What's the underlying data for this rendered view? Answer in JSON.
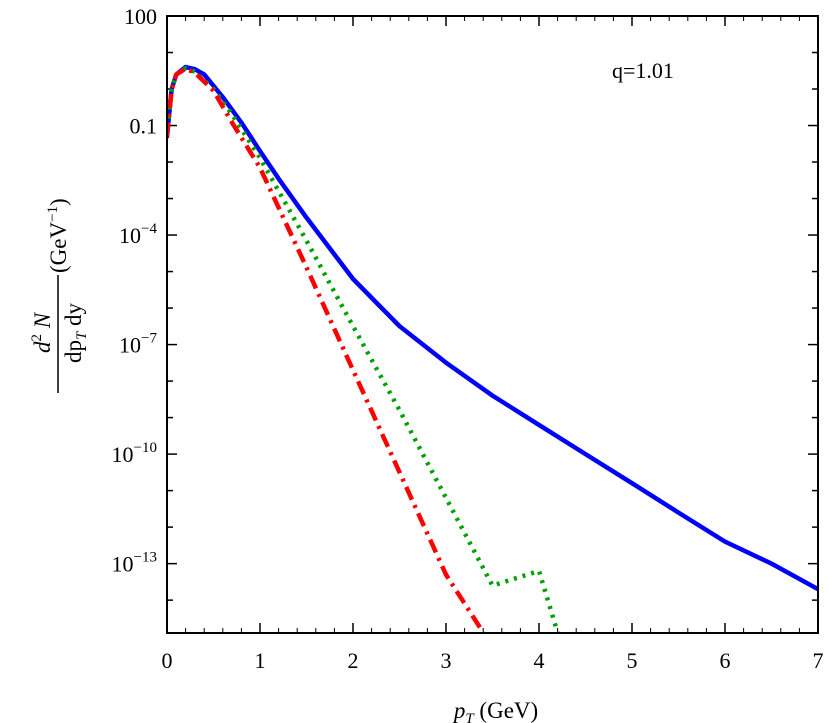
{
  "chart_data": {
    "type": "line",
    "title": "",
    "xlabel": {
      "main": "p",
      "sub": "T",
      "rest": " (GeV)"
    },
    "ylabel": {
      "numerator": {
        "d": "d",
        "sup": "2",
        "N": " N"
      },
      "denominator": {
        "dp": "dp",
        "sub": "T",
        "dy": " dy"
      },
      "unit": {
        "open": "(GeV",
        "sup": "−1",
        "close": ")"
      }
    },
    "xlim": [
      0,
      7
    ],
    "ylim_log10": [
      -14.9,
      2
    ],
    "yscale": "log",
    "grid": false,
    "annotation": "q=1.01",
    "x_ticks": [
      {
        "value": 0,
        "label": "0"
      },
      {
        "value": 1,
        "label": "1"
      },
      {
        "value": 2,
        "label": "2"
      },
      {
        "value": 3,
        "label": "3"
      },
      {
        "value": 4,
        "label": "4"
      },
      {
        "value": 5,
        "label": "5"
      },
      {
        "value": 6,
        "label": "6"
      },
      {
        "value": 7,
        "label": "7"
      }
    ],
    "y_ticks": [
      {
        "log10": 2,
        "base": "100",
        "exp": ""
      },
      {
        "log10": -1,
        "base": "0.1",
        "exp": ""
      },
      {
        "log10": -4,
        "base": "10",
        "exp": "−4"
      },
      {
        "log10": -7,
        "base": "10",
        "exp": "−7"
      },
      {
        "log10": -10,
        "base": "10",
        "exp": "−10"
      },
      {
        "log10": -13,
        "base": "10",
        "exp": "−13"
      }
    ],
    "series": [
      {
        "style": "solid",
        "color": "#0000ff",
        "x": [
          0,
          0.05,
          0.1,
          0.2,
          0.3,
          0.4,
          0.6,
          0.8,
          1.0,
          1.2,
          1.5,
          2.0,
          2.5,
          3.0,
          3.5,
          4.0,
          4.5,
          5.0,
          5.5,
          6.0,
          6.5,
          7.0
        ],
        "y": [
          0.05,
          1.0,
          2.5,
          4.0,
          3.5,
          2.5,
          0.6,
          0.12,
          0.02,
          0.0035,
          0.0003,
          6.3e-06,
          3.2e-07,
          3.2e-08,
          4e-09,
          6.3e-10,
          1e-10,
          1.6e-11,
          2.5e-12,
          4e-13,
          1e-13,
          2e-14
        ]
      },
      {
        "style": "dotted",
        "color": "#00a000",
        "x": [
          0,
          0.05,
          0.1,
          0.2,
          0.3,
          0.5,
          0.7,
          1.0,
          1.5,
          2.0,
          2.5,
          3.0,
          3.5,
          4.0,
          4.2
        ],
        "y": [
          0.05,
          1.0,
          2.5,
          3.7,
          3.0,
          1.0,
          0.2,
          0.013,
          7e-05,
          3.2e-07,
          1.6e-09,
          6.3e-12,
          2.5e-14,
          6.3e-14,
          1.3e-15
        ]
      },
      {
        "style": "dashdot",
        "color": "#ff0000",
        "x": [
          0,
          0.05,
          0.1,
          0.2,
          0.3,
          0.5,
          0.7,
          1.0,
          1.5,
          2.0,
          2.5,
          3.0,
          3.4
        ],
        "y": [
          0.05,
          1.0,
          2.5,
          3.6,
          2.8,
          0.9,
          0.12,
          0.007,
          1.3e-05,
          2e-08,
          3.2e-11,
          5e-14,
          1.3e-15
        ]
      }
    ]
  }
}
